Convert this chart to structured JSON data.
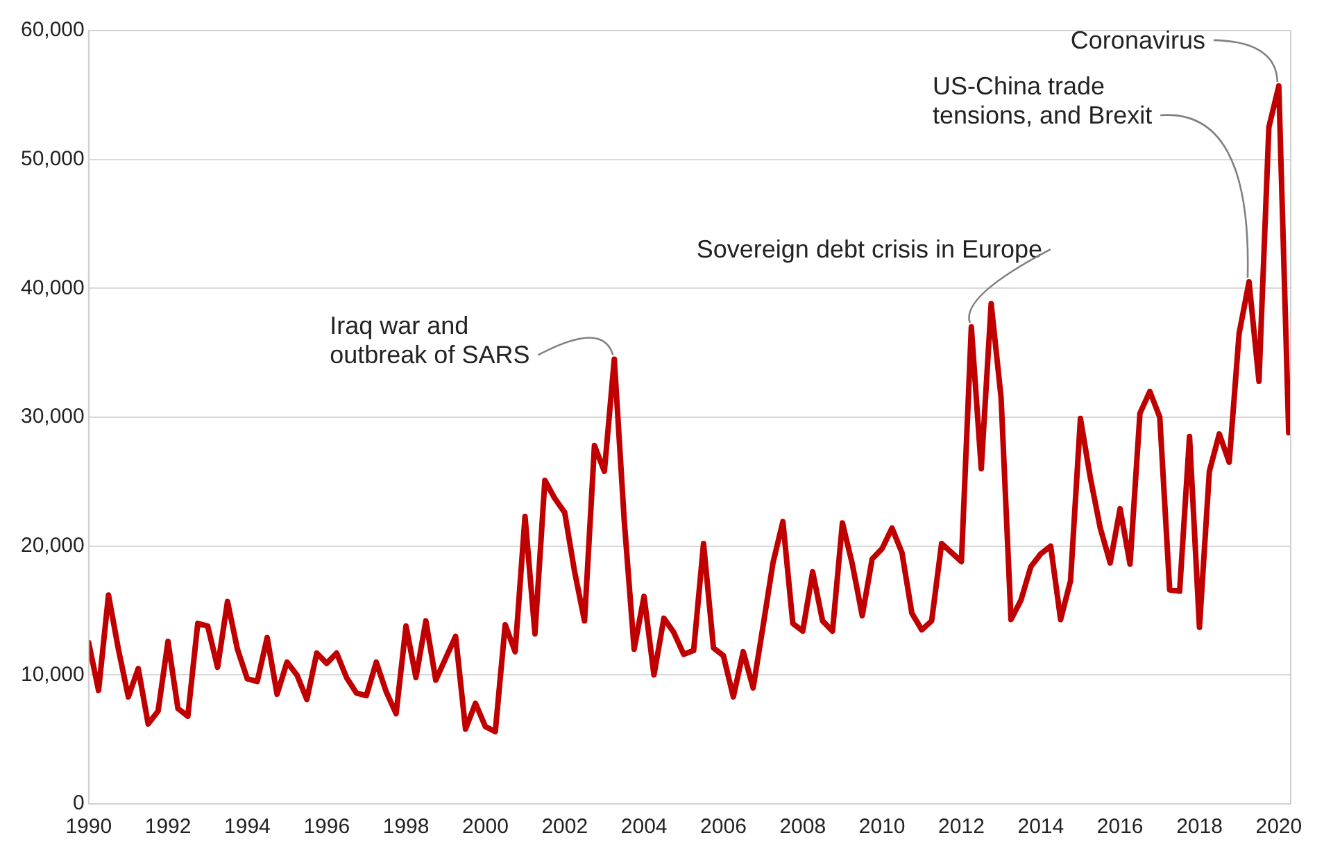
{
  "chart_data": {
    "type": "line",
    "x": [
      1990,
      1990.25,
      1990.5,
      1990.75,
      1991,
      1991.25,
      1991.5,
      1991.75,
      1992,
      1992.25,
      1992.5,
      1992.75,
      1993,
      1993.25,
      1993.5,
      1993.75,
      1994,
      1994.25,
      1994.5,
      1994.75,
      1995,
      1995.25,
      1995.5,
      1995.75,
      1996,
      1996.25,
      1996.5,
      1996.75,
      1997,
      1997.25,
      1997.5,
      1997.75,
      1998,
      1998.25,
      1998.5,
      1998.75,
      1999,
      1999.25,
      1999.5,
      1999.75,
      2000,
      2000.25,
      2000.5,
      2000.75,
      2001,
      2001.25,
      2001.5,
      2001.75,
      2002,
      2002.25,
      2002.5,
      2002.75,
      2003,
      2003.25,
      2003.5,
      2003.75,
      2004,
      2004.25,
      2004.5,
      2004.75,
      2005,
      2005.25,
      2005.5,
      2005.75,
      2006,
      2006.25,
      2006.5,
      2006.75,
      2007,
      2007.25,
      2007.5,
      2007.75,
      2008,
      2008.25,
      2008.5,
      2008.75,
      2009,
      2009.25,
      2009.5,
      2009.75,
      2010,
      2010.25,
      2010.5,
      2010.75,
      2011,
      2011.25,
      2011.5,
      2011.75,
      2012,
      2012.25,
      2012.5,
      2012.75,
      2013,
      2013.25,
      2013.5,
      2013.75,
      2014,
      2014.25,
      2014.5,
      2014.75,
      2015,
      2015.25,
      2015.5,
      2015.75,
      2016,
      2016.25,
      2016.5,
      2016.75,
      2017,
      2017.25,
      2017.5,
      2017.75,
      2018,
      2018.25,
      2018.5,
      2018.75,
      2019,
      2019.25,
      2019.5,
      2019.75,
      2020,
      2020.25
    ],
    "series": [
      {
        "color": "#c00000",
        "values": [
          12500,
          8800,
          16200,
          12000,
          8300,
          10500,
          6200,
          7200,
          12600,
          7400,
          6800,
          14000,
          13800,
          10600,
          15700,
          12000,
          9700,
          9500,
          12900,
          8500,
          11000,
          10000,
          8100,
          11700,
          10900,
          11700,
          9800,
          8600,
          8400,
          11000,
          8700,
          7000,
          13800,
          9800,
          14200,
          9600,
          11300,
          13000,
          5800,
          7800,
          6000,
          5600,
          13900,
          11800,
          22300,
          13200,
          25100,
          23700,
          22600,
          18000,
          14200,
          27800,
          25800,
          34500,
          22000,
          12000,
          16100,
          10000,
          14400,
          13300,
          11600,
          11900,
          20200,
          12100,
          11500,
          8300,
          11800,
          9000,
          13800,
          18700,
          21900,
          14000,
          13400,
          18000,
          14200,
          13400,
          21800,
          18600,
          14600,
          19000,
          19800,
          21400,
          19500,
          14800,
          13500,
          14200,
          20200,
          19500,
          18800,
          37000,
          26000,
          38800,
          31500,
          14300,
          15800,
          18400,
          19400,
          20000,
          14300,
          17300,
          29900,
          25300,
          21400,
          18700,
          22900,
          18600,
          30300,
          32000,
          30000,
          16600,
          16500,
          28500,
          13700,
          25800,
          28700,
          26500,
          36500,
          40500,
          32800,
          52500,
          55700,
          28800
        ]
      }
    ],
    "xlim": [
      1990,
      2020.3
    ],
    "xticks": [
      1990,
      1992,
      1994,
      1996,
      1998,
      2000,
      2002,
      2004,
      2006,
      2008,
      2010,
      2012,
      2014,
      2016,
      2018,
      2020
    ],
    "ylim": [
      0,
      60000
    ],
    "yticks": [
      0,
      {
        "value": 10000,
        "label": "10,000"
      },
      {
        "value": 20000,
        "label": "20,000"
      },
      {
        "value": 30000,
        "label": "30,000"
      },
      {
        "value": 40000,
        "label": "40,000"
      },
      {
        "value": 50000,
        "label": "50,000"
      },
      {
        "value": 60000,
        "label": "60,000"
      }
    ],
    "grid": "y",
    "legend": false,
    "marker": "none",
    "line_style": "solid",
    "annotations": [
      {
        "text": "Iraq war and\noutbreak of SARS",
        "x": 2003.25,
        "y": 34500
      },
      {
        "text": "Sovereign debt crisis in Europe",
        "x": 2012.25,
        "y": 37000
      },
      {
        "text": "US-China trade\ntensions, and Brexit",
        "x": 2019.25,
        "y": 40500
      },
      {
        "text": "Coronavirus",
        "x": 2020,
        "y": 55700
      }
    ]
  }
}
